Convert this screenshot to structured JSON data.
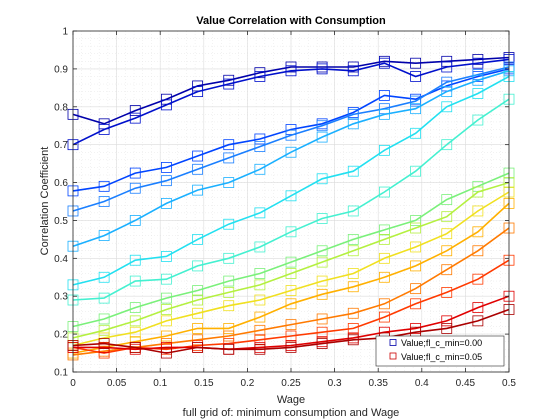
{
  "chart_data": {
    "type": "line",
    "title": "Value Correlation with Consumption",
    "xlabel": "Wage",
    "ylabel": "Correlation Coefficient",
    "footer_label": "full grid of: minimum consumption and Wage",
    "xlim": [
      0,
      0.5
    ],
    "ylim": [
      0.1,
      1
    ],
    "xticks": [
      0,
      0.05,
      0.1,
      0.15,
      0.2,
      0.25,
      0.3,
      0.35,
      0.4,
      0.45,
      0.5
    ],
    "xtick_labels": [
      "0",
      "0.05",
      "0.1",
      "0.15",
      "0.2",
      "0.25",
      "0.3",
      "0.35",
      "0.4",
      "0.45",
      "0.5"
    ],
    "yticks": [
      0.1,
      0.2,
      0.3,
      0.4,
      0.5,
      0.6,
      0.7,
      0.8,
      0.9,
      1
    ],
    "ytick_labels": [
      "0.1",
      "0.2",
      "0.3",
      "0.4",
      "0.5",
      "0.6",
      "0.7",
      "0.8",
      "0.9",
      "1"
    ],
    "grid": true,
    "legend_position": "bottom-right",
    "legend": [
      {
        "label": "Value;fl_c_min=0.00",
        "color": "#0000aa"
      },
      {
        "label": "Value;fl_c_min=0.05",
        "color": "#cc0000"
      }
    ],
    "x": [
      0,
      0.0357,
      0.0714,
      0.1071,
      0.1429,
      0.1786,
      0.2143,
      0.25,
      0.2857,
      0.3214,
      0.3571,
      0.3929,
      0.4286,
      0.4643,
      0.5
    ],
    "series": [
      {
        "name": "s1",
        "color": "#0000aa",
        "values": [
          0.78,
          0.755,
          0.79,
          0.82,
          0.855,
          0.87,
          0.89,
          0.905,
          0.905,
          0.905,
          0.92,
          0.915,
          0.92,
          0.925,
          0.93
        ]
      },
      {
        "name": "s2",
        "color": "#0010cc",
        "values": [
          0.7,
          0.74,
          0.77,
          0.805,
          0.84,
          0.86,
          0.88,
          0.895,
          0.9,
          0.895,
          0.915,
          0.88,
          0.905,
          0.915,
          0.925
        ]
      },
      {
        "name": "s3",
        "color": "#0044ff",
        "values": [
          0.578,
          0.59,
          0.625,
          0.64,
          0.67,
          0.7,
          0.715,
          0.74,
          0.755,
          0.785,
          0.83,
          0.82,
          0.855,
          0.88,
          0.9
        ]
      },
      {
        "name": "s4",
        "color": "#1a7fff",
        "values": [
          0.525,
          0.55,
          0.585,
          0.605,
          0.635,
          0.665,
          0.695,
          0.725,
          0.75,
          0.78,
          0.795,
          0.815,
          0.865,
          0.885,
          0.905
        ]
      },
      {
        "name": "s5",
        "color": "#1ab0ff",
        "values": [
          0.432,
          0.46,
          0.5,
          0.545,
          0.58,
          0.6,
          0.635,
          0.68,
          0.72,
          0.755,
          0.78,
          0.795,
          0.84,
          0.87,
          0.895
        ]
      },
      {
        "name": "s6",
        "color": "#22e0f0",
        "values": [
          0.33,
          0.35,
          0.395,
          0.405,
          0.45,
          0.49,
          0.52,
          0.565,
          0.61,
          0.63,
          0.685,
          0.73,
          0.8,
          0.835,
          0.88
        ]
      },
      {
        "name": "s7",
        "color": "#44f0d0",
        "values": [
          0.29,
          0.295,
          0.34,
          0.345,
          0.38,
          0.4,
          0.43,
          0.47,
          0.505,
          0.525,
          0.575,
          0.63,
          0.7,
          0.765,
          0.82
        ]
      },
      {
        "name": "s8",
        "color": "#7af07a",
        "values": [
          0.22,
          0.24,
          0.27,
          0.295,
          0.315,
          0.34,
          0.36,
          0.39,
          0.42,
          0.45,
          0.475,
          0.5,
          0.555,
          0.59,
          0.625
        ]
      },
      {
        "name": "s9",
        "color": "#b4f040",
        "values": [
          0.19,
          0.21,
          0.235,
          0.265,
          0.29,
          0.31,
          0.33,
          0.36,
          0.39,
          0.42,
          0.45,
          0.48,
          0.51,
          0.575,
          0.6
        ]
      },
      {
        "name": "s10",
        "color": "#f0e020",
        "values": [
          0.17,
          0.19,
          0.205,
          0.235,
          0.255,
          0.275,
          0.29,
          0.315,
          0.34,
          0.36,
          0.4,
          0.43,
          0.465,
          0.525,
          0.575
        ]
      },
      {
        "name": "s11",
        "color": "#ffb000",
        "values": [
          0.15,
          0.165,
          0.18,
          0.195,
          0.215,
          0.215,
          0.245,
          0.28,
          0.305,
          0.325,
          0.35,
          0.38,
          0.42,
          0.47,
          0.545
        ]
      },
      {
        "name": "s12",
        "color": "#ff7a00",
        "values": [
          0.145,
          0.155,
          0.165,
          0.175,
          0.185,
          0.195,
          0.21,
          0.225,
          0.24,
          0.255,
          0.28,
          0.32,
          0.37,
          0.42,
          0.48
        ]
      },
      {
        "name": "s13",
        "color": "#ff3a00",
        "values": [
          0.165,
          0.15,
          0.165,
          0.16,
          0.17,
          0.175,
          0.185,
          0.195,
          0.205,
          0.215,
          0.245,
          0.28,
          0.31,
          0.345,
          0.395
        ]
      },
      {
        "name": "s14",
        "color": "#e00000",
        "values": [
          0.165,
          0.165,
          0.16,
          0.165,
          0.165,
          0.16,
          0.165,
          0.17,
          0.18,
          0.19,
          0.205,
          0.215,
          0.235,
          0.27,
          0.3
        ]
      },
      {
        "name": "s15",
        "color": "#aa0000",
        "values": [
          0.17,
          0.175,
          0.165,
          0.15,
          0.165,
          0.16,
          0.16,
          0.165,
          0.175,
          0.185,
          0.19,
          0.205,
          0.215,
          0.235,
          0.265
        ]
      }
    ]
  }
}
